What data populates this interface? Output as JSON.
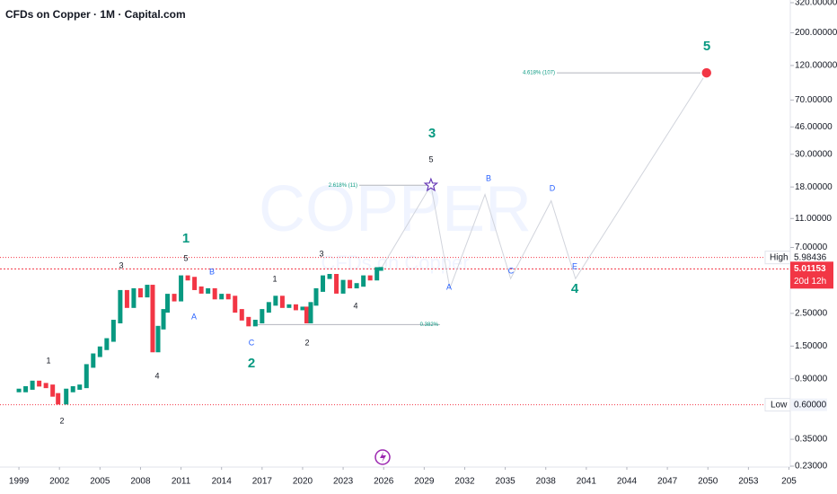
{
  "chart_data": {
    "type": "candlestick",
    "title": "CFDs on Copper · 1M · Capital.com",
    "watermark": "COPPER",
    "watermark_sub": "CFDs on Copper",
    "log_scale": true,
    "x": [
      1999,
      1999.5,
      2000,
      2000.5,
      2001,
      2001.5,
      2001.9,
      2002.5,
      2003,
      2003.5,
      2004,
      2004.5,
      2005,
      2005.5,
      2006,
      2006.5,
      2007,
      2007.5,
      2008,
      2008.5,
      2008.9,
      2009.3,
      2009.7,
      2010,
      2010.5,
      2011,
      2011.5,
      2012,
      2012.5,
      2013,
      2013.5,
      2014,
      2014.5,
      2015,
      2015.5,
      2016,
      2016.5,
      2017,
      2017.5,
      2018,
      2018.5,
      2019,
      2019.5,
      2020,
      2020.3,
      2020.6,
      2021,
      2021.5,
      2022,
      2022.5,
      2023,
      2023.5,
      2024,
      2024.5,
      2025,
      2025.5,
      2025.8
    ],
    "values": [
      0.75,
      0.78,
      0.85,
      0.82,
      0.8,
      0.7,
      0.62,
      0.75,
      0.78,
      0.8,
      1.1,
      1.3,
      1.45,
      1.65,
      2.2,
      3.5,
      2.8,
      3.6,
      3.3,
      3.8,
      1.4,
      2.0,
      2.6,
      3.3,
      3.1,
      4.4,
      4.3,
      3.7,
      3.5,
      3.6,
      3.2,
      3.3,
      3.2,
      2.6,
      2.3,
      2.1,
      2.2,
      2.6,
      2.9,
      3.2,
      2.8,
      2.8,
      2.7,
      2.7,
      2.2,
      2.9,
      3.6,
      4.4,
      4.5,
      3.5,
      4.1,
      3.8,
      3.9,
      4.4,
      4.3,
      5.0,
      5.01153
    ],
    "projection": {
      "x": [
        2025.8,
        2029.5,
        2030.9,
        2033.5,
        2035.4,
        2038.4,
        2040.2,
        2049.9
      ],
      "values": [
        5.01153,
        18.5,
        3.7,
        16,
        4.3,
        14.5,
        4.3,
        107
      ]
    },
    "xlim": [
      1997.6,
      2056.1
    ],
    "ylim": [
      0.23,
      320
    ],
    "xticks": [
      1999,
      2002,
      2005,
      2008,
      2011,
      2014,
      2017,
      2020,
      2023,
      2026,
      2029,
      2032,
      2035,
      2038,
      2041,
      2044,
      2047,
      2050,
      2053,
      {
        "value": 2056,
        "label": "205"
      }
    ],
    "yticks": [
      {
        "value": 320,
        "label": "320.00000"
      },
      {
        "value": 200,
        "label": "200.00000"
      },
      {
        "value": 120,
        "label": "120.00000"
      },
      {
        "value": 70,
        "label": "70.00000"
      },
      {
        "value": 46,
        "label": "46.00000"
      },
      {
        "value": 30,
        "label": "30.00000"
      },
      {
        "value": 18,
        "label": "18.00000"
      },
      {
        "value": 11,
        "label": "11.00000"
      },
      {
        "value": 7,
        "label": "7.00000"
      },
      {
        "value": 2.5,
        "label": "2.50000"
      },
      {
        "value": 1.5,
        "label": "1.50000"
      },
      {
        "value": 0.9,
        "label": "0.90000"
      },
      {
        "value": 0.35,
        "label": "0.35000"
      },
      {
        "value": 0.23,
        "label": "0.23000"
      }
    ],
    "high": {
      "label": "High",
      "value": 5.98436
    },
    "low": {
      "label": "Low",
      "value": 0.6,
      "value_label": "0.60000"
    },
    "last": {
      "value": 5.01153,
      "countdown": "20d 12h"
    },
    "fib": [
      {
        "label": "2.618% (11)",
        "value": 18.5
      },
      {
        "label": "4.618% (107)",
        "value": 107
      },
      {
        "label": "0.382%",
        "value": 2.1
      }
    ],
    "wave_labels": [
      "1",
      "2",
      "3",
      "4",
      "5",
      "1",
      "2",
      "3",
      "4",
      "5",
      "1",
      "2",
      "3",
      "4",
      "5",
      "A",
      "B",
      "C",
      "A",
      "B",
      "C",
      "D",
      "E"
    ]
  }
}
